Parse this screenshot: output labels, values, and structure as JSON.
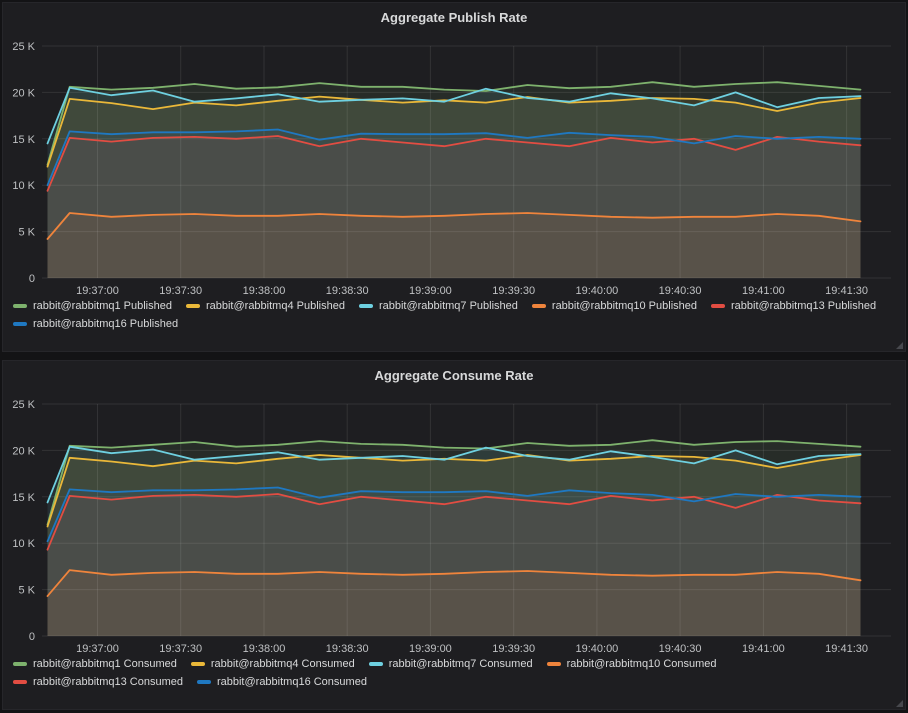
{
  "page": {
    "background": "#131315",
    "panel_background": "#1e1e21"
  },
  "chart_data": [
    {
      "type": "line",
      "title": "Aggregate Publish Rate",
      "xlabel": "",
      "ylabel": "",
      "ylim": [
        0,
        25000
      ],
      "grid": true,
      "legend_position": "bottom-left",
      "fill_opacity": 0.1,
      "line_width": 1.8,
      "x_domain": [
        0,
        306
      ],
      "x_origin_time": "19:36:40",
      "x": [
        2,
        10,
        25,
        40,
        55,
        70,
        85,
        100,
        115,
        130,
        145,
        160,
        175,
        190,
        205,
        220,
        235,
        250,
        265,
        280,
        295
      ],
      "xticks": [
        {
          "t": 20,
          "label": "19:37:00"
        },
        {
          "t": 50,
          "label": "19:37:30"
        },
        {
          "t": 80,
          "label": "19:38:00"
        },
        {
          "t": 110,
          "label": "19:38:30"
        },
        {
          "t": 140,
          "label": "19:39:00"
        },
        {
          "t": 170,
          "label": "19:39:30"
        },
        {
          "t": 200,
          "label": "19:40:00"
        },
        {
          "t": 230,
          "label": "19:40:30"
        },
        {
          "t": 260,
          "label": "19:41:00"
        },
        {
          "t": 290,
          "label": "19:41:30"
        }
      ],
      "yticks": [
        {
          "value": 25000,
          "label": "25 K"
        },
        {
          "value": 20000,
          "label": "20 K"
        },
        {
          "value": 15000,
          "label": "15 K"
        },
        {
          "value": 10000,
          "label": "10 K"
        },
        {
          "value": 5000,
          "label": "5 K"
        },
        {
          "value": 0,
          "label": "0"
        }
      ],
      "series": [
        {
          "name": "rabbit@rabbitmq1 Published",
          "color": "#7EB26D",
          "values": [
            12200,
            20600,
            20300,
            20500,
            20900,
            20400,
            20550,
            21000,
            20600,
            20600,
            20300,
            20150,
            20800,
            20450,
            20600,
            21100,
            20600,
            20900,
            21100,
            20700,
            20300
          ]
        },
        {
          "name": "rabbit@rabbitmq4 Published",
          "color": "#EAB839",
          "values": [
            12000,
            19300,
            18850,
            18200,
            18900,
            18600,
            19100,
            19550,
            19200,
            18900,
            19150,
            18900,
            19500,
            18900,
            19100,
            19400,
            19300,
            18900,
            18000,
            18900,
            19400
          ]
        },
        {
          "name": "rabbit@rabbitmq7 Published",
          "color": "#6ED0E0",
          "values": [
            14500,
            20500,
            19700,
            20200,
            19000,
            19350,
            19800,
            19000,
            19200,
            19350,
            19000,
            20400,
            19400,
            19000,
            19900,
            19350,
            18600,
            20000,
            18400,
            19400,
            19600
          ]
        },
        {
          "name": "rabbit@rabbitmq10 Published",
          "color": "#EF843C",
          "values": [
            4200,
            7000,
            6600,
            6800,
            6900,
            6700,
            6700,
            6900,
            6700,
            6600,
            6700,
            6900,
            7000,
            6800,
            6600,
            6500,
            6600,
            6600,
            6900,
            6700,
            6100
          ]
        },
        {
          "name": "rabbit@rabbitmq13 Published",
          "color": "#E24D42",
          "values": [
            9400,
            15100,
            14700,
            15100,
            15200,
            15000,
            15300,
            14200,
            15000,
            14600,
            14200,
            15000,
            14600,
            14200,
            15100,
            14600,
            15000,
            13800,
            15200,
            14700,
            14300
          ]
        },
        {
          "name": "rabbit@rabbitmq16 Published",
          "color": "#1F78C1",
          "values": [
            10000,
            15800,
            15500,
            15700,
            15700,
            15800,
            16000,
            14900,
            15550,
            15500,
            15500,
            15600,
            15100,
            15650,
            15400,
            15200,
            14500,
            15300,
            15000,
            15200,
            15000
          ]
        }
      ]
    },
    {
      "type": "line",
      "title": "Aggregate Consume Rate",
      "xlabel": "",
      "ylabel": "",
      "ylim": [
        0,
        25000
      ],
      "grid": true,
      "legend_position": "bottom-left",
      "fill_opacity": 0.1,
      "line_width": 1.8,
      "x_domain": [
        0,
        306
      ],
      "x_origin_time": "19:36:40",
      "x": [
        2,
        10,
        25,
        40,
        55,
        70,
        85,
        100,
        115,
        130,
        145,
        160,
        175,
        190,
        205,
        220,
        235,
        250,
        265,
        280,
        295
      ],
      "xticks": [
        {
          "t": 20,
          "label": "19:37:00"
        },
        {
          "t": 50,
          "label": "19:37:30"
        },
        {
          "t": 80,
          "label": "19:38:00"
        },
        {
          "t": 110,
          "label": "19:38:30"
        },
        {
          "t": 140,
          "label": "19:39:00"
        },
        {
          "t": 170,
          "label": "19:39:30"
        },
        {
          "t": 200,
          "label": "19:40:00"
        },
        {
          "t": 230,
          "label": "19:40:30"
        },
        {
          "t": 260,
          "label": "19:41:00"
        },
        {
          "t": 290,
          "label": "19:41:30"
        }
      ],
      "yticks": [
        {
          "value": 25000,
          "label": "25 K"
        },
        {
          "value": 20000,
          "label": "20 K"
        },
        {
          "value": 15000,
          "label": "15 K"
        },
        {
          "value": 10000,
          "label": "10 K"
        },
        {
          "value": 5000,
          "label": "5 K"
        },
        {
          "value": 0,
          "label": "0"
        }
      ],
      "series": [
        {
          "name": "rabbit@rabbitmq1 Consumed",
          "color": "#7EB26D",
          "values": [
            12000,
            20500,
            20300,
            20600,
            20900,
            20400,
            20600,
            21000,
            20700,
            20600,
            20300,
            20200,
            20800,
            20500,
            20600,
            21100,
            20600,
            20900,
            21000,
            20700,
            20400
          ]
        },
        {
          "name": "rabbit@rabbitmq4 Consumed",
          "color": "#EAB839",
          "values": [
            11800,
            19200,
            18800,
            18300,
            18900,
            18600,
            19100,
            19500,
            19200,
            18900,
            19100,
            18900,
            19500,
            18900,
            19100,
            19400,
            19300,
            18900,
            18100,
            18900,
            19500
          ]
        },
        {
          "name": "rabbit@rabbitmq7 Consumed",
          "color": "#6ED0E0",
          "values": [
            14400,
            20400,
            19700,
            20100,
            19000,
            19400,
            19800,
            19000,
            19200,
            19400,
            19000,
            20300,
            19400,
            19000,
            19900,
            19300,
            18600,
            20000,
            18500,
            19400,
            19600
          ]
        },
        {
          "name": "rabbit@rabbitmq10 Consumed",
          "color": "#EF843C",
          "values": [
            4300,
            7100,
            6600,
            6800,
            6900,
            6700,
            6700,
            6900,
            6700,
            6600,
            6700,
            6900,
            7000,
            6800,
            6600,
            6500,
            6600,
            6600,
            6900,
            6700,
            6000
          ]
        },
        {
          "name": "rabbit@rabbitmq13 Consumed",
          "color": "#E24D42",
          "values": [
            9300,
            15100,
            14700,
            15100,
            15200,
            15000,
            15300,
            14200,
            15000,
            14600,
            14200,
            15000,
            14600,
            14200,
            15100,
            14600,
            15000,
            13800,
            15200,
            14600,
            14300
          ]
        },
        {
          "name": "rabbit@rabbitmq16 Consumed",
          "color": "#1F78C1",
          "values": [
            10200,
            15800,
            15500,
            15700,
            15700,
            15800,
            16000,
            14900,
            15600,
            15500,
            15500,
            15600,
            15100,
            15700,
            15400,
            15200,
            14500,
            15300,
            15000,
            15200,
            15000
          ]
        }
      ]
    }
  ]
}
